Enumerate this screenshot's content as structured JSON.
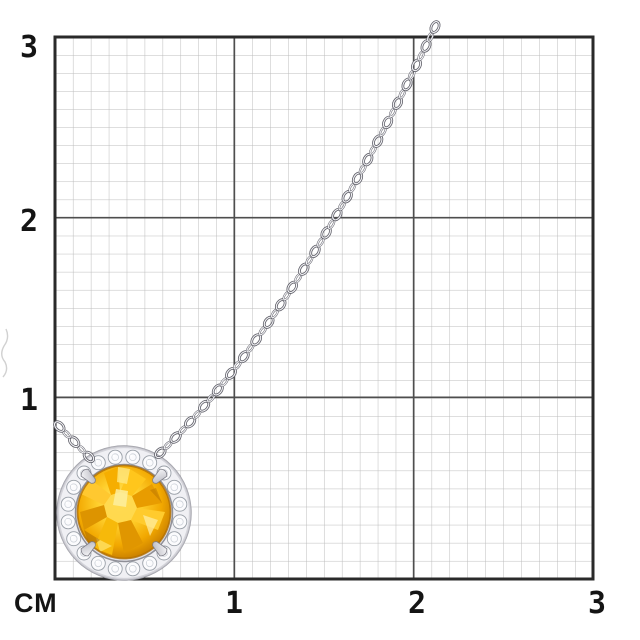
{
  "ruler": {
    "unit_label": "СМ",
    "x_tick_labels": [
      "1",
      "2",
      "3"
    ],
    "y_tick_labels": [
      "3",
      "2",
      "1"
    ]
  },
  "colors": {
    "background": "#ffffff",
    "grid_minor": "#bcbcbc",
    "grid_major": "#4e4e4e",
    "grid_border": "#2a2a2a",
    "tick_text": "#141414",
    "metal_light": "#f3f3f6",
    "metal_mid": "#cfcfd6",
    "metal_outline": "#5d5d66",
    "metal_highlight": "#f4f4f7",
    "diamond_white": "#fbfbfd",
    "diamond_edge": "#9aa0a8",
    "stone_yellow": "#ffd02e",
    "stone_amber": "#f2a800",
    "stone_dark_rim": "#b06e00",
    "stone_highlight": "#ffe882"
  }
}
